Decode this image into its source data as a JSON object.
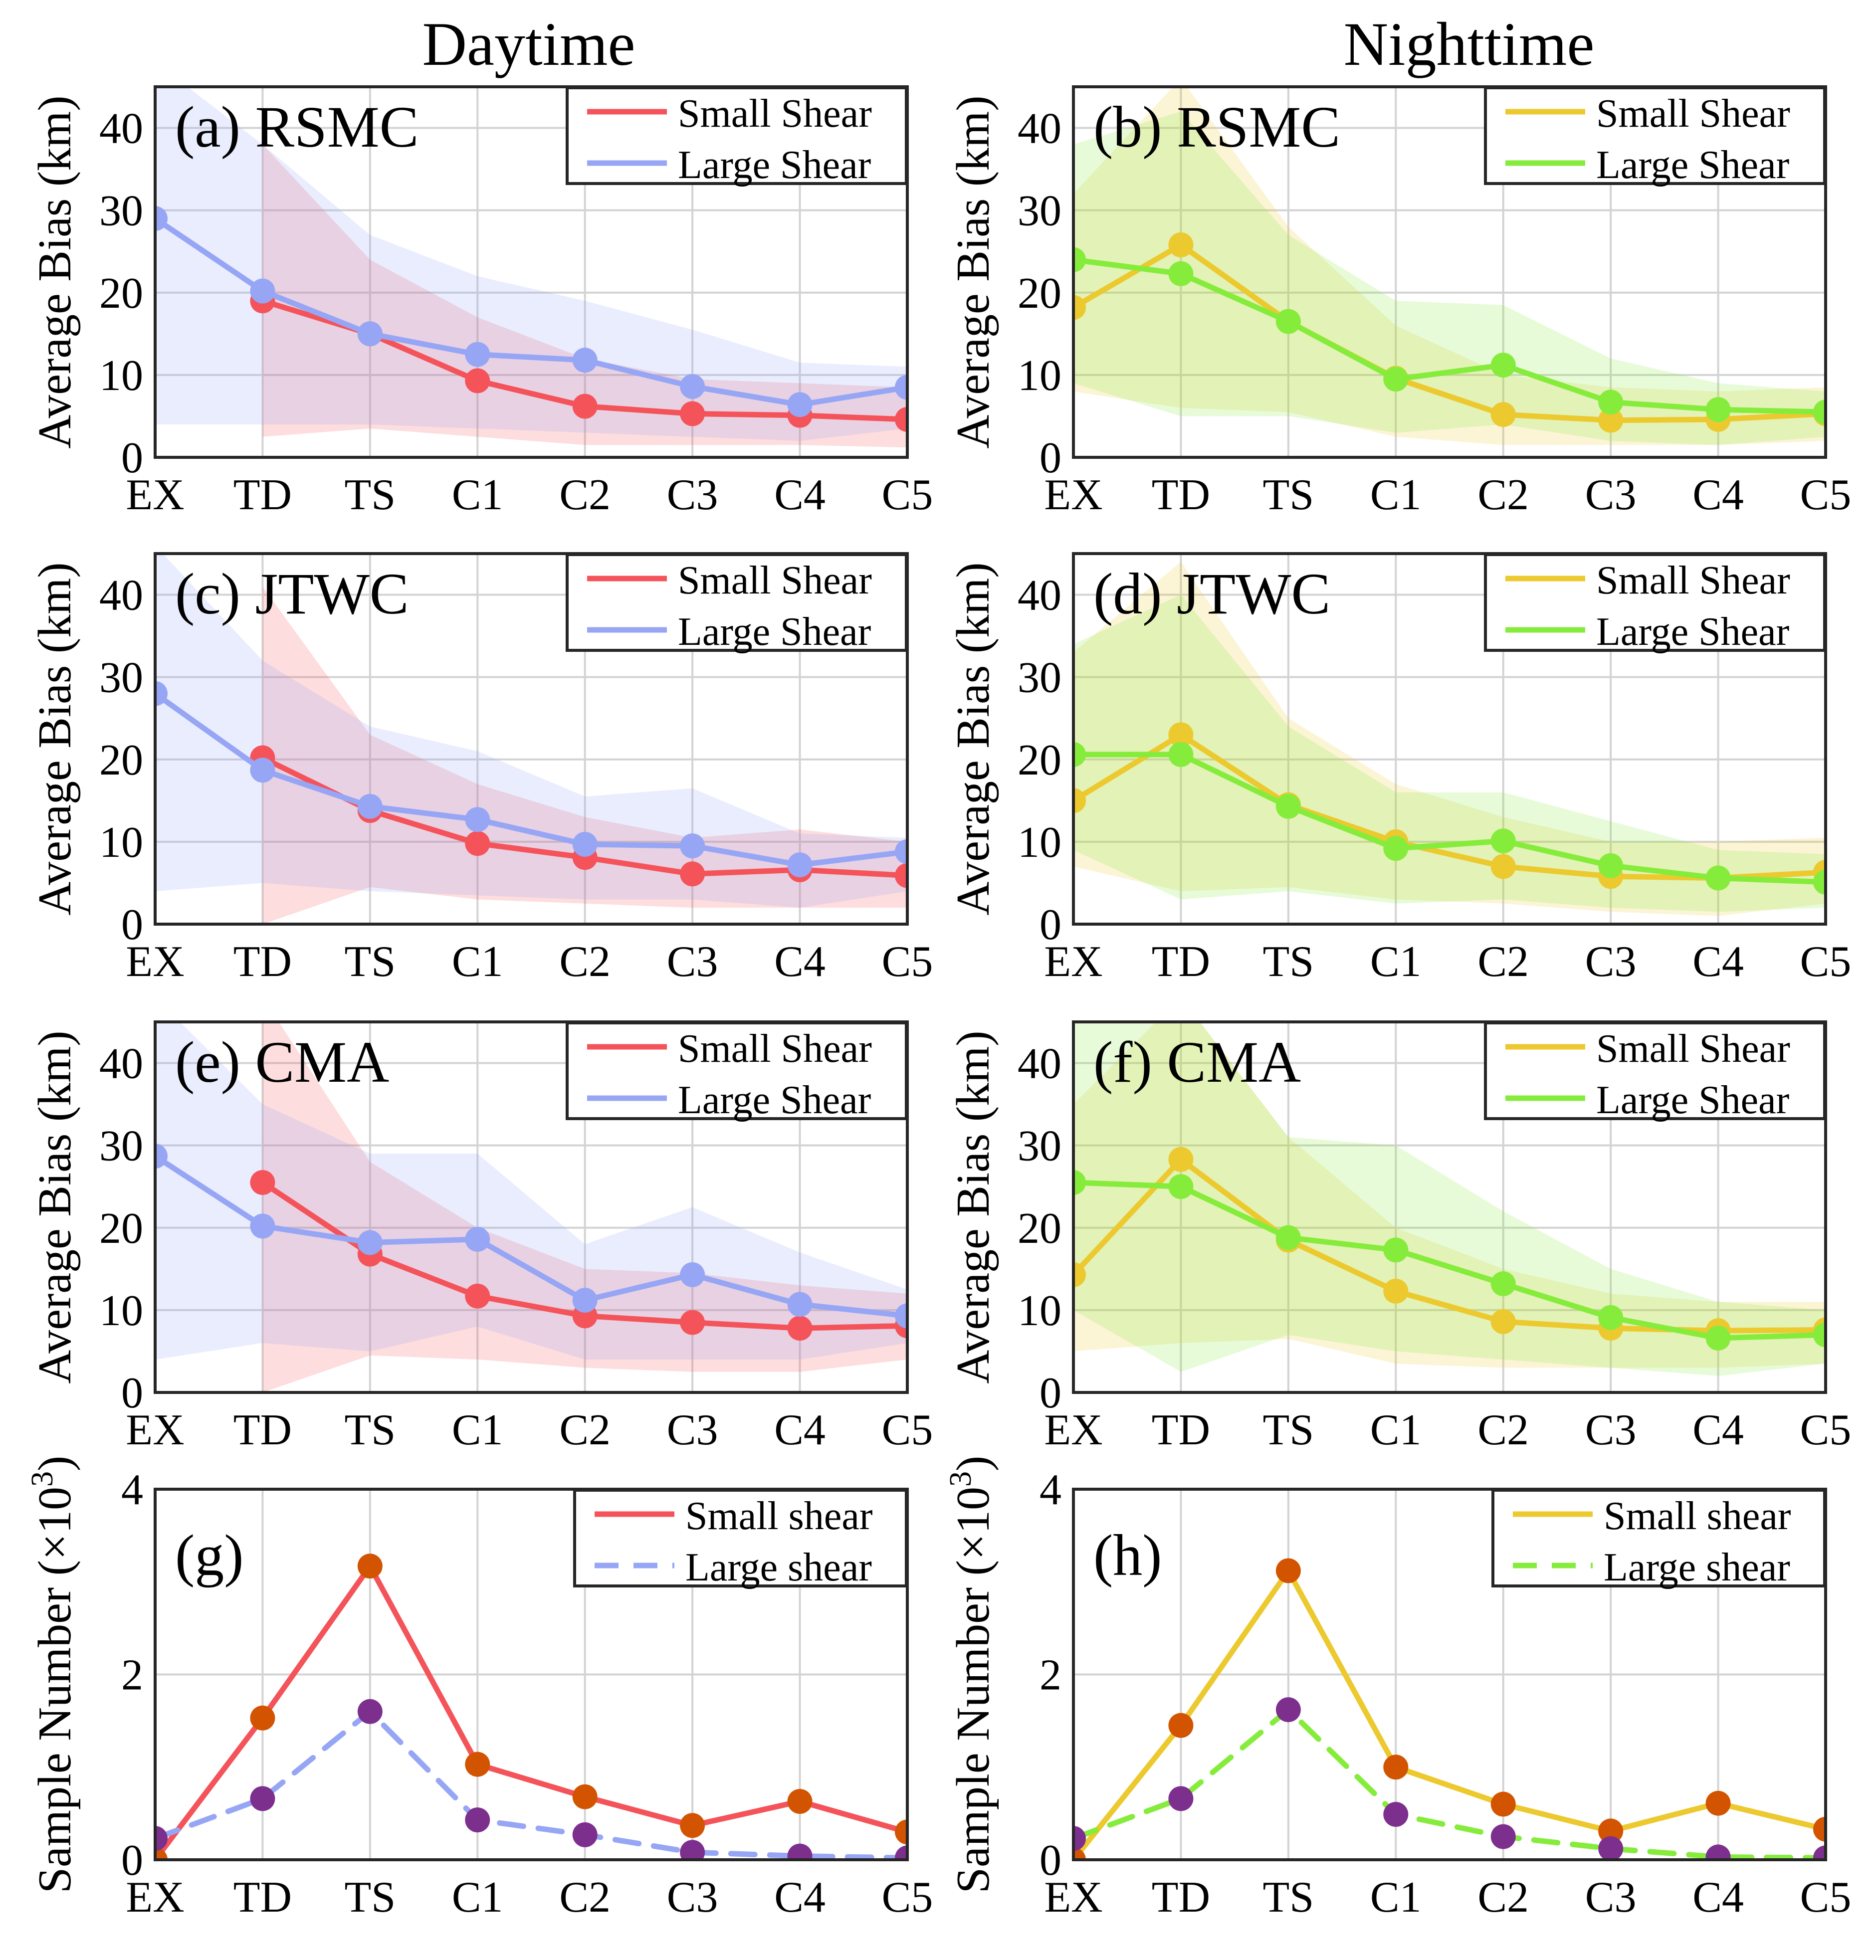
{
  "figure": {
    "column_titles": [
      "Daytime",
      "Nighttime"
    ],
    "colors": {
      "day_small": "#f4535a",
      "day_large": "#96a6f5",
      "night_small": "#ecc92e",
      "night_large": "#86ec3c",
      "marker_small_count": "#d35400",
      "marker_large_count": "#7d2f8e",
      "grid": "#d3d3d3",
      "axis": "#262626"
    }
  },
  "chart_data": [
    {
      "id": "a",
      "type": "line",
      "column": "Daytime",
      "title": "(a) RSMC",
      "categories": [
        "EX",
        "TD",
        "TS",
        "C1",
        "C2",
        "C3",
        "C4",
        "C5"
      ],
      "ylabel": "Average Bias (km)",
      "ylim": [
        0,
        45
      ],
      "yticks": [
        0,
        10,
        20,
        30,
        40
      ],
      "grid": true,
      "legend_position": "top-right",
      "series": [
        {
          "name": "Small Shear",
          "values": [
            null,
            19,
            15,
            9.3,
            6.2,
            5.3,
            5.1,
            4.6
          ],
          "band_upper": [
            null,
            38,
            24,
            17,
            12,
            9.5,
            9,
            8.5
          ],
          "band_lower": [
            null,
            2.5,
            3.5,
            2.5,
            1.5,
            1.5,
            1.5,
            1.2
          ]
        },
        {
          "name": "Large Shear",
          "values": [
            29,
            20.2,
            15,
            12.5,
            11.8,
            8.6,
            6.4,
            8.5
          ],
          "band_upper": [
            48,
            38,
            27,
            22,
            19,
            15.5,
            11.5,
            11
          ],
          "band_lower": [
            4,
            4,
            4,
            3.5,
            3,
            2.5,
            2,
            3.5
          ]
        }
      ]
    },
    {
      "id": "b",
      "type": "line",
      "column": "Nighttime",
      "title": "(b) RSMC",
      "categories": [
        "EX",
        "TD",
        "TS",
        "C1",
        "C2",
        "C3",
        "C4",
        "C5"
      ],
      "ylabel": "Average Bias (km)",
      "ylim": [
        0,
        45
      ],
      "yticks": [
        0,
        10,
        20,
        30,
        40
      ],
      "grid": true,
      "legend_position": "top-right",
      "series": [
        {
          "name": "Small Shear",
          "values": [
            18.2,
            25.8,
            16.5,
            9.6,
            5.2,
            4.5,
            4.6,
            5.3
          ],
          "band_upper": [
            32,
            46,
            28,
            16,
            10,
            8.5,
            8,
            8.5
          ],
          "band_lower": [
            8,
            6,
            5.5,
            2.5,
            1.5,
            1.5,
            1.5,
            2
          ]
        },
        {
          "name": "Large Shear",
          "values": [
            24,
            22.3,
            16.5,
            9.5,
            11.2,
            6.7,
            5.8,
            5.5
          ],
          "band_upper": [
            38,
            42,
            27,
            19,
            18.5,
            12,
            9,
            8
          ],
          "band_lower": [
            9,
            5,
            5,
            3,
            4,
            2,
            1.5,
            2.5
          ]
        }
      ]
    },
    {
      "id": "c",
      "type": "line",
      "column": "Daytime",
      "title": "(c) JTWC",
      "categories": [
        "EX",
        "TD",
        "TS",
        "C1",
        "C2",
        "C3",
        "C4",
        "C5"
      ],
      "ylabel": "Average Bias (km)",
      "ylim": [
        0,
        45
      ],
      "yticks": [
        0,
        10,
        20,
        30,
        40
      ],
      "grid": true,
      "legend_position": "top-right",
      "series": [
        {
          "name": "Small Shear",
          "values": [
            null,
            20.2,
            13.8,
            9.8,
            8.1,
            6.1,
            6.6,
            5.9
          ],
          "band_upper": [
            null,
            41,
            23,
            17,
            13,
            10.5,
            11.5,
            10
          ],
          "band_lower": [
            null,
            0,
            4.5,
            3,
            2.5,
            2,
            2,
            2
          ]
        },
        {
          "name": "Large Shear",
          "values": [
            28,
            18.7,
            14.3,
            12.7,
            9.7,
            9.5,
            7.2,
            8.8
          ],
          "band_upper": [
            46,
            32,
            24,
            21,
            15.5,
            16.5,
            11,
            10.5
          ],
          "band_lower": [
            4,
            5,
            4,
            3.5,
            3,
            3,
            2,
            4
          ]
        }
      ]
    },
    {
      "id": "d",
      "type": "line",
      "column": "Nighttime",
      "title": "(d) JTWC",
      "categories": [
        "EX",
        "TD",
        "TS",
        "C1",
        "C2",
        "C3",
        "C4",
        "C5"
      ],
      "ylabel": "Average Bias (km)",
      "ylim": [
        0,
        45
      ],
      "yticks": [
        0,
        10,
        20,
        30,
        40
      ],
      "grid": true,
      "legend_position": "top-right",
      "series": [
        {
          "name": "Small Shear",
          "values": [
            15,
            23,
            14.5,
            10,
            7,
            5.8,
            5.6,
            6.3
          ],
          "band_upper": [
            33,
            44,
            25,
            17,
            13,
            10,
            10,
            10.5
          ],
          "band_lower": [
            7,
            4,
            4.5,
            3,
            2.5,
            1.5,
            1,
            2.5
          ]
        },
        {
          "name": "Large Shear",
          "values": [
            20.6,
            20.6,
            14.3,
            9.2,
            10.1,
            7.1,
            5.6,
            5.1
          ],
          "band_upper": [
            34,
            40,
            24,
            16,
            16,
            12.5,
            9,
            8.5
          ],
          "band_lower": [
            9,
            3,
            4,
            2.5,
            3,
            2,
            1.5,
            2
          ]
        }
      ]
    },
    {
      "id": "e",
      "type": "line",
      "column": "Daytime",
      "title": "(e) CMA",
      "categories": [
        "EX",
        "TD",
        "TS",
        "C1",
        "C2",
        "C3",
        "C4",
        "C5"
      ],
      "ylabel": "Average Bias (km)",
      "ylim": [
        0,
        45
      ],
      "yticks": [
        0,
        10,
        20,
        30,
        40
      ],
      "grid": true,
      "legend_position": "top-right",
      "series": [
        {
          "name": "Small Shear",
          "values": [
            null,
            25.5,
            16.8,
            11.7,
            9.3,
            8.5,
            7.8,
            8.1
          ],
          "band_upper": [
            null,
            48,
            28,
            20,
            15,
            14.5,
            13,
            12
          ],
          "band_lower": [
            null,
            0,
            4.5,
            4,
            3,
            2.5,
            2.5,
            4
          ]
        },
        {
          "name": "Large Shear",
          "values": [
            28.7,
            20.2,
            18.2,
            18.6,
            11.2,
            14.3,
            10.7,
            9.3
          ],
          "band_upper": [
            48,
            35,
            29,
            29,
            18,
            22.5,
            17,
            12.5
          ],
          "band_lower": [
            4,
            6,
            5,
            8,
            4,
            4,
            4,
            6
          ]
        }
      ]
    },
    {
      "id": "f",
      "type": "line",
      "column": "Nighttime",
      "title": "(f) CMA",
      "categories": [
        "EX",
        "TD",
        "TS",
        "C1",
        "C2",
        "C3",
        "C4",
        "C5"
      ],
      "ylabel": "Average Bias (km)",
      "ylim": [
        0,
        45
      ],
      "yticks": [
        0,
        10,
        20,
        30,
        40
      ],
      "grid": true,
      "legend_position": "top-right",
      "series": [
        {
          "name": "Small Shear",
          "values": [
            14.3,
            28.3,
            18.5,
            12.3,
            8.6,
            7.8,
            7.5,
            7.6
          ],
          "band_upper": [
            35,
            48,
            31,
            20,
            15,
            12,
            11,
            11
          ],
          "band_lower": [
            5,
            6,
            6.5,
            3.5,
            3,
            3,
            3,
            3.5
          ]
        },
        {
          "name": "Large Shear",
          "values": [
            25.5,
            25,
            18.8,
            17.3,
            13.2,
            9.1,
            6.6,
            7
          ],
          "band_upper": [
            46,
            48,
            31,
            30,
            22,
            15,
            11,
            10
          ],
          "band_lower": [
            10,
            2.5,
            7,
            5,
            4,
            3,
            2,
            3.5
          ]
        }
      ]
    },
    {
      "id": "g",
      "type": "line",
      "column": "Daytime",
      "title": "(g)",
      "categories": [
        "EX",
        "TD",
        "TS",
        "C1",
        "C2",
        "C3",
        "C4",
        "C5"
      ],
      "ylabel": "Sample Number (×10³)",
      "ylabel_main": "Sample Number (×10",
      "ylabel_sup": "3",
      "ylabel_close": ")",
      "ylim": [
        0,
        4
      ],
      "yticks": [
        0,
        2,
        4
      ],
      "grid": true,
      "legend_position": "top-right",
      "series": [
        {
          "name": "Small shear",
          "values": [
            0,
            1.53,
            3.17,
            1.03,
            0.68,
            0.37,
            0.63,
            0.3
          ],
          "dash": false
        },
        {
          "name": "Large shear",
          "values": [
            0.23,
            0.66,
            1.6,
            0.43,
            0.27,
            0.08,
            0.04,
            0.02
          ],
          "dash": true
        }
      ]
    },
    {
      "id": "h",
      "type": "line",
      "column": "Nighttime",
      "title": "(h)",
      "categories": [
        "EX",
        "TD",
        "TS",
        "C1",
        "C2",
        "C3",
        "C4",
        "C5"
      ],
      "ylabel": "Sample Number (×10³)",
      "ylabel_main": "Sample Number (×10",
      "ylabel_sup": "3",
      "ylabel_close": ")",
      "ylim": [
        0,
        4
      ],
      "yticks": [
        0,
        2,
        4
      ],
      "grid": true,
      "legend_position": "top-right",
      "series": [
        {
          "name": "Small shear",
          "values": [
            0,
            1.45,
            3.12,
            1.0,
            0.6,
            0.31,
            0.61,
            0.33
          ],
          "dash": false
        },
        {
          "name": "Large shear",
          "values": [
            0.23,
            0.66,
            1.62,
            0.49,
            0.25,
            0.12,
            0.03,
            0.02
          ],
          "dash": true
        }
      ]
    }
  ]
}
